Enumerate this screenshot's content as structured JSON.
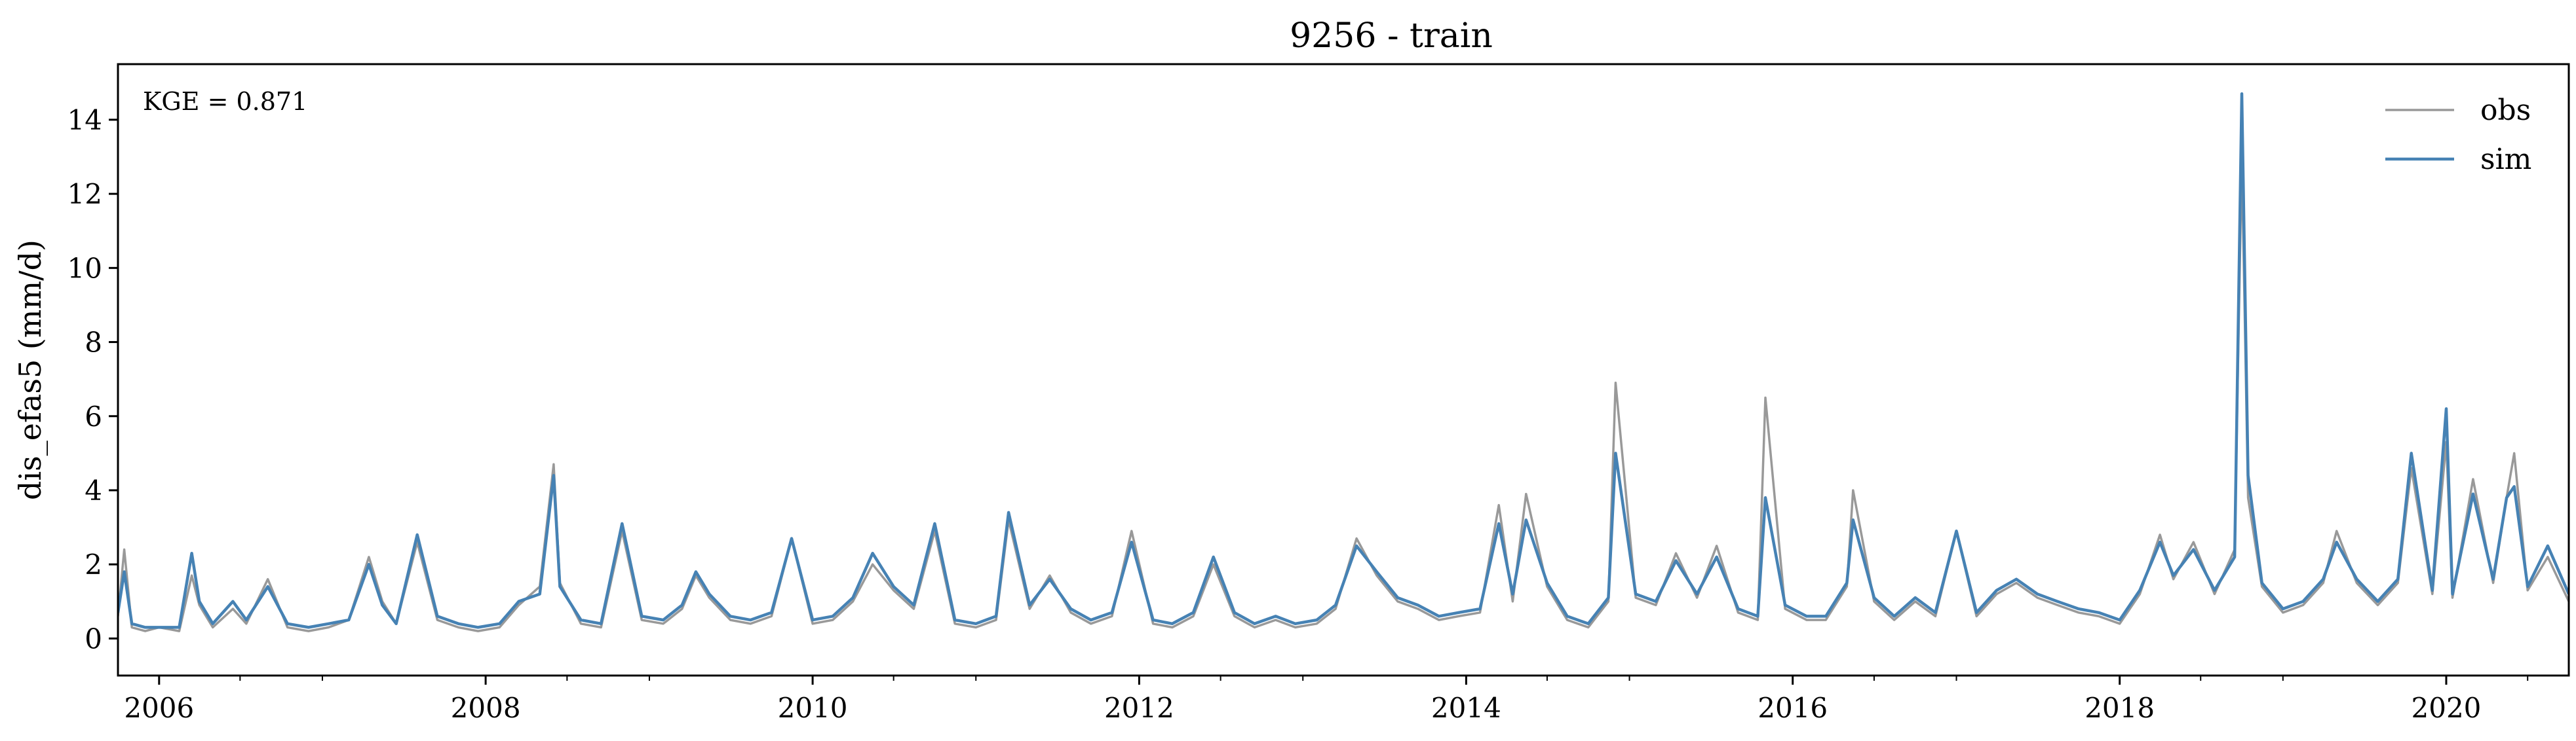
{
  "chart_data": {
    "type": "line",
    "title": "9256 - train",
    "xlabel": "",
    "ylabel": "dis_efas5 (mm/d)",
    "annotation": "KGE = 0.871",
    "xlim": [
      "2005-10-01",
      "2020-10-01"
    ],
    "ylim": [
      -1,
      15.5
    ],
    "x_ticks": [
      2006,
      2008,
      2010,
      2012,
      2014,
      2016,
      2018,
      2020
    ],
    "y_ticks": [
      0,
      2,
      4,
      6,
      8,
      10,
      12,
      14
    ],
    "grid": false,
    "legend": "top-right",
    "series": [
      {
        "name": "obs",
        "color": "#999999",
        "x": [
          "2005-10-01",
          "2005-10-15",
          "2005-11-01",
          "2005-12-01",
          "2006-01-01",
          "2006-02-15",
          "2006-03-15",
          "2006-04-01",
          "2006-05-01",
          "2006-06-15",
          "2006-07-15",
          "2006-09-01",
          "2006-10-15",
          "2006-12-01",
          "2007-01-15",
          "2007-03-01",
          "2007-04-15",
          "2007-05-15",
          "2007-06-15",
          "2007-08-01",
          "2007-09-15",
          "2007-11-01",
          "2007-12-15",
          "2008-02-01",
          "2008-03-15",
          "2008-05-01",
          "2008-06-01",
          "2008-06-15",
          "2008-08-01",
          "2008-09-15",
          "2008-11-01",
          "2008-12-15",
          "2009-02-01",
          "2009-03-15",
          "2009-04-15",
          "2009-05-15",
          "2009-07-01",
          "2009-08-15",
          "2009-10-01",
          "2009-11-15",
          "2010-01-01",
          "2010-02-15",
          "2010-04-01",
          "2010-05-15",
          "2010-07-01",
          "2010-08-15",
          "2010-10-01",
          "2010-11-15",
          "2011-01-01",
          "2011-02-15",
          "2011-03-15",
          "2011-05-01",
          "2011-06-15",
          "2011-08-01",
          "2011-09-15",
          "2011-11-01",
          "2011-12-15",
          "2012-02-01",
          "2012-03-15",
          "2012-05-01",
          "2012-06-15",
          "2012-08-01",
          "2012-09-15",
          "2012-11-01",
          "2012-12-15",
          "2013-02-01",
          "2013-03-15",
          "2013-05-01",
          "2013-06-15",
          "2013-08-01",
          "2013-09-15",
          "2013-11-01",
          "2013-12-15",
          "2014-02-01",
          "2014-03-15",
          "2014-04-15",
          "2014-05-15",
          "2014-07-01",
          "2014-08-15",
          "2014-10-01",
          "2014-11-15",
          "2014-12-01",
          "2015-01-15",
          "2015-03-01",
          "2015-04-15",
          "2015-06-01",
          "2015-07-15",
          "2015-09-01",
          "2015-10-15",
          "2015-11-01",
          "2015-12-15",
          "2016-02-01",
          "2016-03-15",
          "2016-05-01",
          "2016-05-15",
          "2016-07-01",
          "2016-08-15",
          "2016-10-01",
          "2016-11-15",
          "2017-01-01",
          "2017-02-15",
          "2017-04-01",
          "2017-05-15",
          "2017-07-01",
          "2017-08-15",
          "2017-10-01",
          "2017-11-15",
          "2018-01-01",
          "2018-02-15",
          "2018-04-01",
          "2018-05-01",
          "2018-06-15",
          "2018-08-01",
          "2018-09-15",
          "2018-10-01",
          "2018-10-15",
          "2018-11-15",
          "2019-01-01",
          "2019-02-15",
          "2019-04-01",
          "2019-05-01",
          "2019-06-15",
          "2019-08-01",
          "2019-09-15",
          "2019-10-15",
          "2019-12-01",
          "2020-01-01",
          "2020-01-15",
          "2020-03-01",
          "2020-04-15",
          "2020-05-15",
          "2020-06-01",
          "2020-07-01",
          "2020-08-15",
          "2020-10-01"
        ],
        "y": [
          0.6,
          2.4,
          0.3,
          0.2,
          0.3,
          0.2,
          1.7,
          0.9,
          0.3,
          0.8,
          0.4,
          1.6,
          0.3,
          0.2,
          0.3,
          0.5,
          2.2,
          1.0,
          0.4,
          2.6,
          0.5,
          0.3,
          0.2,
          0.3,
          0.9,
          1.4,
          4.7,
          1.5,
          0.4,
          0.3,
          2.9,
          0.5,
          0.4,
          0.8,
          1.7,
          1.1,
          0.5,
          0.4,
          0.6,
          2.7,
          0.4,
          0.5,
          1.0,
          2.0,
          1.3,
          0.8,
          2.9,
          0.4,
          0.3,
          0.5,
          3.2,
          0.8,
          1.7,
          0.7,
          0.4,
          0.6,
          2.9,
          0.4,
          0.3,
          0.6,
          2.0,
          0.6,
          0.3,
          0.5,
          0.3,
          0.4,
          0.8,
          2.7,
          1.7,
          1.0,
          0.8,
          0.5,
          0.6,
          0.7,
          3.6,
          1.0,
          3.9,
          1.4,
          0.5,
          0.3,
          1.0,
          6.9,
          1.1,
          0.9,
          2.3,
          1.1,
          2.5,
          0.7,
          0.5,
          6.5,
          0.8,
          0.5,
          0.5,
          1.4,
          4.0,
          1.0,
          0.5,
          1.0,
          0.6,
          2.9,
          0.6,
          1.2,
          1.5,
          1.1,
          0.9,
          0.7,
          0.6,
          0.4,
          1.2,
          2.8,
          1.6,
          2.6,
          1.2,
          2.4,
          13.0,
          3.8,
          1.4,
          0.7,
          0.9,
          1.5,
          2.9,
          1.5,
          0.9,
          1.5,
          4.6,
          1.2,
          5.3,
          1.1,
          4.3,
          1.5,
          3.8,
          5.0,
          1.3,
          2.2,
          1.0
        ]
      },
      {
        "name": "sim",
        "color": "#4682b4",
        "x": [
          "2005-10-01",
          "2005-10-15",
          "2005-11-01",
          "2005-12-01",
          "2006-01-01",
          "2006-02-15",
          "2006-03-15",
          "2006-04-01",
          "2006-05-01",
          "2006-06-15",
          "2006-07-15",
          "2006-09-01",
          "2006-10-15",
          "2006-12-01",
          "2007-01-15",
          "2007-03-01",
          "2007-04-15",
          "2007-05-15",
          "2007-06-15",
          "2007-08-01",
          "2007-09-15",
          "2007-11-01",
          "2007-12-15",
          "2008-02-01",
          "2008-03-15",
          "2008-05-01",
          "2008-06-01",
          "2008-06-15",
          "2008-08-01",
          "2008-09-15",
          "2008-11-01",
          "2008-12-15",
          "2009-02-01",
          "2009-03-15",
          "2009-04-15",
          "2009-05-15",
          "2009-07-01",
          "2009-08-15",
          "2009-10-01",
          "2009-11-15",
          "2010-01-01",
          "2010-02-15",
          "2010-04-01",
          "2010-05-15",
          "2010-07-01",
          "2010-08-15",
          "2010-10-01",
          "2010-11-15",
          "2011-01-01",
          "2011-02-15",
          "2011-03-15",
          "2011-05-01",
          "2011-06-15",
          "2011-08-01",
          "2011-09-15",
          "2011-11-01",
          "2011-12-15",
          "2012-02-01",
          "2012-03-15",
          "2012-05-01",
          "2012-06-15",
          "2012-08-01",
          "2012-09-15",
          "2012-11-01",
          "2012-12-15",
          "2013-02-01",
          "2013-03-15",
          "2013-05-01",
          "2013-06-15",
          "2013-08-01",
          "2013-09-15",
          "2013-11-01",
          "2013-12-15",
          "2014-02-01",
          "2014-03-15",
          "2014-04-15",
          "2014-05-15",
          "2014-07-01",
          "2014-08-15",
          "2014-10-01",
          "2014-11-15",
          "2014-12-01",
          "2015-01-15",
          "2015-03-01",
          "2015-04-15",
          "2015-06-01",
          "2015-07-15",
          "2015-09-01",
          "2015-10-15",
          "2015-11-01",
          "2015-12-15",
          "2016-02-01",
          "2016-03-15",
          "2016-05-01",
          "2016-05-15",
          "2016-07-01",
          "2016-08-15",
          "2016-10-01",
          "2016-11-15",
          "2017-01-01",
          "2017-02-15",
          "2017-04-01",
          "2017-05-15",
          "2017-07-01",
          "2017-08-15",
          "2017-10-01",
          "2017-11-15",
          "2018-01-01",
          "2018-02-15",
          "2018-04-01",
          "2018-05-01",
          "2018-06-15",
          "2018-08-01",
          "2018-09-15",
          "2018-10-01",
          "2018-10-15",
          "2018-11-15",
          "2019-01-01",
          "2019-02-15",
          "2019-04-01",
          "2019-05-01",
          "2019-06-15",
          "2019-08-01",
          "2019-09-15",
          "2019-10-15",
          "2019-12-01",
          "2020-01-01",
          "2020-01-15",
          "2020-03-01",
          "2020-04-15",
          "2020-05-15",
          "2020-06-01",
          "2020-07-01",
          "2020-08-15",
          "2020-10-01"
        ],
        "y": [
          0.7,
          1.8,
          0.4,
          0.3,
          0.3,
          0.3,
          2.3,
          1.0,
          0.4,
          1.0,
          0.5,
          1.4,
          0.4,
          0.3,
          0.4,
          0.5,
          2.0,
          0.9,
          0.4,
          2.8,
          0.6,
          0.4,
          0.3,
          0.4,
          1.0,
          1.2,
          4.4,
          1.4,
          0.5,
          0.4,
          3.1,
          0.6,
          0.5,
          0.9,
          1.8,
          1.2,
          0.6,
          0.5,
          0.7,
          2.7,
          0.5,
          0.6,
          1.1,
          2.3,
          1.4,
          0.9,
          3.1,
          0.5,
          0.4,
          0.6,
          3.4,
          0.9,
          1.6,
          0.8,
          0.5,
          0.7,
          2.6,
          0.5,
          0.4,
          0.7,
          2.2,
          0.7,
          0.4,
          0.6,
          0.4,
          0.5,
          0.9,
          2.5,
          1.8,
          1.1,
          0.9,
          0.6,
          0.7,
          0.8,
          3.1,
          1.2,
          3.2,
          1.5,
          0.6,
          0.4,
          1.1,
          5.0,
          1.2,
          1.0,
          2.1,
          1.2,
          2.2,
          0.8,
          0.6,
          3.8,
          0.9,
          0.6,
          0.6,
          1.5,
          3.2,
          1.1,
          0.6,
          1.1,
          0.7,
          2.9,
          0.7,
          1.3,
          1.6,
          1.2,
          1.0,
          0.8,
          0.7,
          0.5,
          1.3,
          2.6,
          1.7,
          2.4,
          1.3,
          2.2,
          14.7,
          4.4,
          1.5,
          0.8,
          1.0,
          1.6,
          2.6,
          1.6,
          1.0,
          1.6,
          5.0,
          1.3,
          6.2,
          1.2,
          3.9,
          1.6,
          3.8,
          4.1,
          1.4,
          2.5,
          1.2
        ]
      }
    ]
  }
}
